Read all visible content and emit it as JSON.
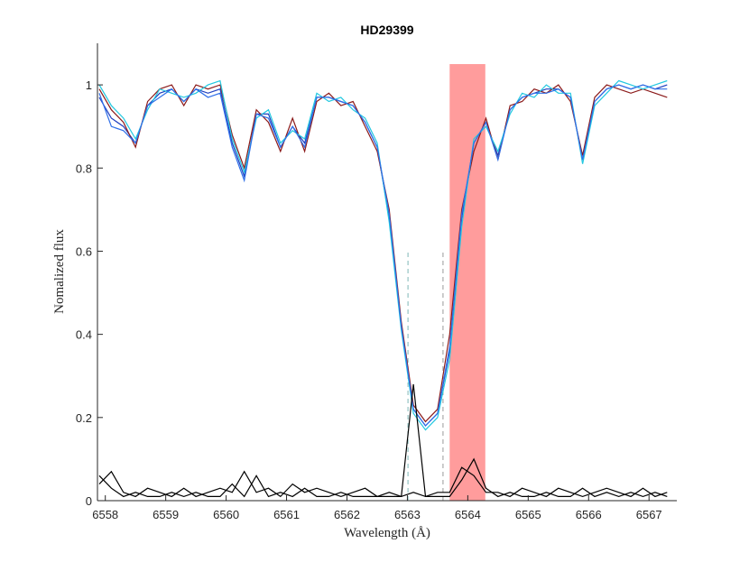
{
  "chart_data": {
    "type": "line",
    "title": "HD29399",
    "xlabel": "Wavelength (Å)",
    "ylabel": "Nomalized flux",
    "xlim": [
      6557.87,
      6567.46
    ],
    "ylim": [
      0,
      1.1
    ],
    "xticks": [
      6558,
      6559,
      6560,
      6561,
      6562,
      6563,
      6564,
      6565,
      6566,
      6567
    ],
    "yticks": [
      0,
      0.2,
      0.4,
      0.6,
      0.8,
      1
    ],
    "grid": false,
    "highlight": {
      "xlim": [
        6563.7,
        6564.29
      ],
      "ylim": [
        0,
        1.05
      ],
      "color": "#ff9c9c"
    },
    "vlines": [
      {
        "x": 6563.01,
        "ylim": [
          0,
          0.6
        ],
        "color": "#7fb8b8"
      },
      {
        "x": 6563.59,
        "ylim": [
          0,
          0.6
        ],
        "color": "#999999"
      }
    ],
    "x": [
      6557.9,
      6558.1,
      6558.3,
      6558.5,
      6558.7,
      6558.9,
      6559.1,
      6559.3,
      6559.5,
      6559.7,
      6559.9,
      6560.1,
      6560.3,
      6560.5,
      6560.7,
      6560.9,
      6561.1,
      6561.3,
      6561.5,
      6561.7,
      6561.9,
      6562.1,
      6562.3,
      6562.5,
      6562.7,
      6562.9,
      6563.1,
      6563.3,
      6563.5,
      6563.7,
      6563.9,
      6564.1,
      6564.3,
      6564.5,
      6564.7,
      6564.9,
      6565.1,
      6565.3,
      6565.5,
      6565.7,
      6565.9,
      6566.1,
      6566.3,
      6566.5,
      6566.7,
      6566.9,
      6567.1,
      6567.3
    ],
    "series": [
      {
        "color": "#1f3fbf",
        "values": [
          0.97,
          0.92,
          0.9,
          0.86,
          0.95,
          0.98,
          0.99,
          0.96,
          0.99,
          0.98,
          0.99,
          0.86,
          0.78,
          0.93,
          0.93,
          0.85,
          0.9,
          0.86,
          0.97,
          0.97,
          0.96,
          0.95,
          0.91,
          0.85,
          0.68,
          0.42,
          0.22,
          0.18,
          0.21,
          0.36,
          0.68,
          0.86,
          0.91,
          0.83,
          0.94,
          0.97,
          0.98,
          0.99,
          0.99,
          0.97,
          0.82,
          0.96,
          0.99,
          1.0,
          0.99,
          1.0,
          0.99,
          1.0
        ]
      },
      {
        "color": "#8b1a1a",
        "values": [
          0.99,
          0.94,
          0.91,
          0.85,
          0.96,
          0.99,
          1.0,
          0.95,
          1.0,
          0.99,
          1.0,
          0.88,
          0.8,
          0.94,
          0.91,
          0.84,
          0.92,
          0.84,
          0.96,
          0.98,
          0.95,
          0.96,
          0.9,
          0.84,
          0.7,
          0.43,
          0.23,
          0.19,
          0.22,
          0.4,
          0.7,
          0.84,
          0.92,
          0.82,
          0.95,
          0.96,
          0.99,
          0.98,
          1.0,
          0.96,
          0.83,
          0.97,
          1.0,
          0.99,
          0.98,
          0.99,
          0.98,
          0.97
        ]
      },
      {
        "color": "#22c8e0",
        "values": [
          1.0,
          0.95,
          0.92,
          0.87,
          0.94,
          0.99,
          0.98,
          0.97,
          0.98,
          1.0,
          1.01,
          0.87,
          0.79,
          0.92,
          0.94,
          0.86,
          0.89,
          0.87,
          0.98,
          0.96,
          0.97,
          0.94,
          0.92,
          0.86,
          0.67,
          0.41,
          0.21,
          0.17,
          0.2,
          0.34,
          0.66,
          0.87,
          0.9,
          0.84,
          0.93,
          0.98,
          0.97,
          1.0,
          0.98,
          0.98,
          0.81,
          0.95,
          0.98,
          1.01,
          1.0,
          0.99,
          1.0,
          1.01
        ]
      },
      {
        "color": "#2f6fe8",
        "values": [
          0.98,
          0.9,
          0.89,
          0.86,
          0.95,
          0.97,
          0.99,
          0.96,
          0.99,
          0.97,
          0.98,
          0.85,
          0.77,
          0.93,
          0.92,
          0.85,
          0.9,
          0.85,
          0.97,
          0.97,
          0.96,
          0.95,
          0.91,
          0.85,
          0.69,
          0.42,
          0.22,
          0.18,
          0.21,
          0.37,
          0.69,
          0.86,
          0.91,
          0.82,
          0.94,
          0.97,
          0.98,
          0.98,
          0.99,
          0.97,
          0.82,
          0.96,
          0.99,
          1.0,
          0.99,
          1.0,
          0.99,
          0.99
        ]
      },
      {
        "color": "#000000",
        "values": [
          0.06,
          0.03,
          0.01,
          0.02,
          0.01,
          0.01,
          0.02,
          0.01,
          0.02,
          0.01,
          0.01,
          0.04,
          0.01,
          0.06,
          0.01,
          0.02,
          0.01,
          0.03,
          0.01,
          0.01,
          0.02,
          0.01,
          0.01,
          0.01,
          0.01,
          0.01,
          0.28,
          0.01,
          0.01,
          0.01,
          0.05,
          0.1,
          0.03,
          0.01,
          0.02,
          0.01,
          0.01,
          0.02,
          0.01,
          0.01,
          0.03,
          0.01,
          0.02,
          0.01,
          0.02,
          0.01,
          0.02,
          0.01
        ]
      },
      {
        "color": "#000000",
        "values": [
          0.04,
          0.07,
          0.02,
          0.01,
          0.03,
          0.02,
          0.01,
          0.03,
          0.01,
          0.02,
          0.03,
          0.02,
          0.07,
          0.02,
          0.03,
          0.01,
          0.04,
          0.02,
          0.03,
          0.02,
          0.01,
          0.02,
          0.03,
          0.01,
          0.02,
          0.01,
          0.02,
          0.01,
          0.02,
          0.02,
          0.08,
          0.06,
          0.02,
          0.02,
          0.01,
          0.03,
          0.02,
          0.01,
          0.03,
          0.02,
          0.01,
          0.02,
          0.03,
          0.02,
          0.01,
          0.03,
          0.01,
          0.02
        ]
      }
    ]
  }
}
